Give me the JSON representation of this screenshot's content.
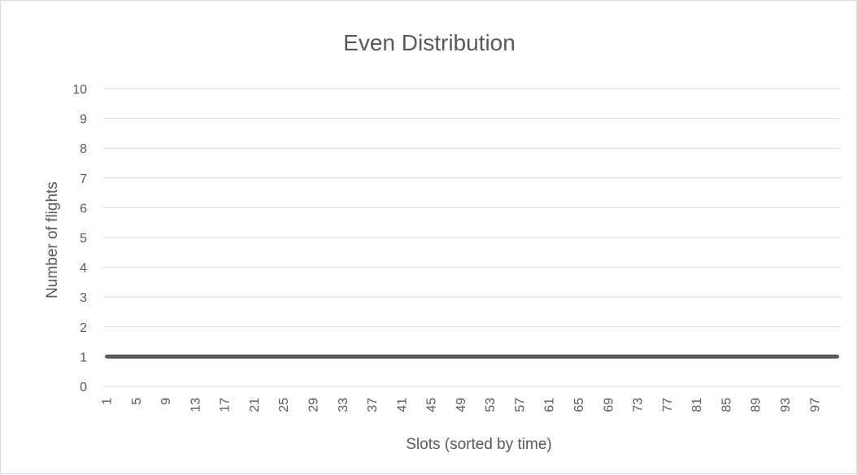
{
  "chart_data": {
    "type": "line",
    "title": "Even Distribution",
    "xlabel": "Slots (sorted by time)",
    "ylabel": "Number of flights",
    "ylim": [
      0,
      10
    ],
    "yticks": [
      0,
      1,
      2,
      3,
      4,
      5,
      6,
      7,
      8,
      9,
      10
    ],
    "x": [
      1,
      2,
      3,
      4,
      5,
      6,
      7,
      8,
      9,
      10,
      11,
      12,
      13,
      14,
      15,
      16,
      17,
      18,
      19,
      20,
      21,
      22,
      23,
      24,
      25,
      26,
      27,
      28,
      29,
      30,
      31,
      32,
      33,
      34,
      35,
      36,
      37,
      38,
      39,
      40,
      41,
      42,
      43,
      44,
      45,
      46,
      47,
      48,
      49,
      50,
      51,
      52,
      53,
      54,
      55,
      56,
      57,
      58,
      59,
      60,
      61,
      62,
      63,
      64,
      65,
      66,
      67,
      68,
      69,
      70,
      71,
      72,
      73,
      74,
      75,
      76,
      77,
      78,
      79,
      80,
      81,
      82,
      83,
      84,
      85,
      86,
      87,
      88,
      89,
      90,
      91,
      92,
      93,
      94,
      95,
      96,
      97,
      98,
      99,
      100
    ],
    "x_tick_labels": [
      "1",
      "5",
      "9",
      "13",
      "17",
      "21",
      "25",
      "29",
      "33",
      "37",
      "41",
      "45",
      "49",
      "53",
      "57",
      "61",
      "65",
      "69",
      "73",
      "77",
      "81",
      "85",
      "89",
      "93",
      "97"
    ],
    "series": [
      {
        "values": [
          1,
          1,
          1,
          1,
          1,
          1,
          1,
          1,
          1,
          1,
          1,
          1,
          1,
          1,
          1,
          1,
          1,
          1,
          1,
          1,
          1,
          1,
          1,
          1,
          1,
          1,
          1,
          1,
          1,
          1,
          1,
          1,
          1,
          1,
          1,
          1,
          1,
          1,
          1,
          1,
          1,
          1,
          1,
          1,
          1,
          1,
          1,
          1,
          1,
          1,
          1,
          1,
          1,
          1,
          1,
          1,
          1,
          1,
          1,
          1,
          1,
          1,
          1,
          1,
          1,
          1,
          1,
          1,
          1,
          1,
          1,
          1,
          1,
          1,
          1,
          1,
          1,
          1,
          1,
          1,
          1,
          1,
          1,
          1,
          1,
          1,
          1,
          1,
          1,
          1,
          1,
          1,
          1,
          1,
          1,
          1,
          1,
          1,
          1,
          1
        ],
        "color": "#595959"
      }
    ],
    "grid": true,
    "gridline_color": "#d9d9d9",
    "legend": "none"
  }
}
